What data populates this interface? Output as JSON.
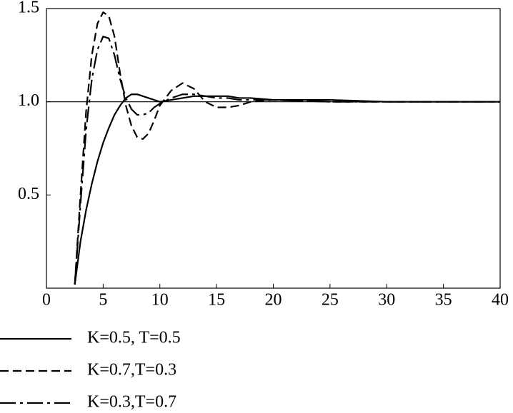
{
  "chart_data": {
    "type": "line",
    "x": [
      2.5,
      3,
      3.5,
      4,
      4.5,
      5,
      5.5,
      6,
      6.5,
      7,
      7.5,
      8,
      8.5,
      9,
      9.5,
      10,
      11,
      12,
      13,
      14,
      15,
      16,
      17,
      18,
      20,
      25,
      30,
      35,
      40
    ],
    "series": [
      {
        "name": "K=0.5, T=0.5",
        "color": "#000000",
        "dash": "solid",
        "values": [
          0.02,
          0.25,
          0.42,
          0.56,
          0.68,
          0.78,
          0.86,
          0.93,
          0.98,
          1.02,
          1.04,
          1.04,
          1.03,
          1.02,
          1.01,
          1.0,
          1.01,
          1.02,
          1.03,
          1.03,
          1.03,
          1.03,
          1.02,
          1.02,
          1.01,
          1.01,
          1.0,
          1.0,
          1.0
        ]
      },
      {
        "name": "K=0.7,T=0.3",
        "color": "#000000",
        "dash": "dashed",
        "values": [
          0.02,
          0.5,
          0.95,
          1.25,
          1.42,
          1.48,
          1.46,
          1.35,
          1.15,
          0.98,
          0.87,
          0.81,
          0.8,
          0.83,
          0.9,
          0.98,
          1.06,
          1.1,
          1.07,
          1.0,
          0.97,
          0.97,
          0.98,
          1.0,
          1.01,
          1.0,
          1.0,
          1.0,
          1.0
        ]
      },
      {
        "name": "K=0.3,T=0.7",
        "color": "#000000",
        "dash": "longdash",
        "values": [
          0.02,
          0.45,
          0.85,
          1.12,
          1.28,
          1.35,
          1.34,
          1.25,
          1.12,
          1.02,
          0.96,
          0.93,
          0.93,
          0.94,
          0.97,
          0.99,
          1.02,
          1.04,
          1.04,
          1.03,
          1.02,
          1.02,
          1.01,
          1.01,
          1.01,
          1.0,
          1.0,
          1.0,
          1.0
        ]
      }
    ],
    "xlim": [
      0,
      40
    ],
    "xticks": [
      0,
      5,
      10,
      15,
      20,
      25,
      30,
      35,
      40
    ],
    "ylim": [
      0,
      1.5
    ],
    "yticks": [
      0.5,
      {
        "value": 1,
        "label": "1.0"
      },
      1.5
    ],
    "hline": 1,
    "legend": "bottom-left"
  }
}
